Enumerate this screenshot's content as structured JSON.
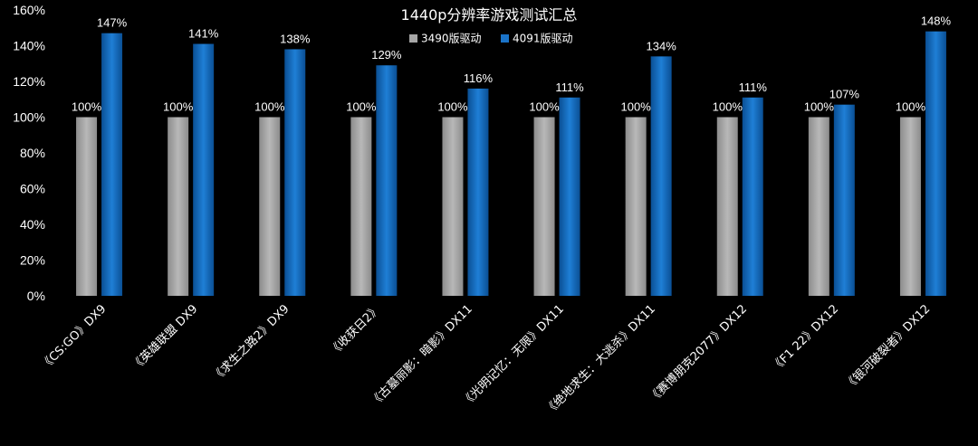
{
  "chart_data": {
    "type": "bar",
    "title": "1440p分辨率游戏测试汇总",
    "categories": [
      "《CS:GO》DX9",
      "《英雄联盟 DX9",
      "《求生之路2》DX9",
      "《收获日2》",
      "《古墓丽影：暗影》DX11",
      "《光明记忆：无限》DX11",
      "《绝地求生：大逃杀》DX11",
      "《赛博朋克2077》DX12",
      "《F1 22》DX12",
      "《银河破裂者》DX12"
    ],
    "series": [
      {
        "name": "3490版驱动",
        "color": "#a6a6a6",
        "values": [
          100,
          100,
          100,
          100,
          100,
          100,
          100,
          100,
          100,
          100
        ],
        "labels": [
          "100%",
          "100%",
          "100%",
          "100%",
          "100%",
          "100%",
          "100%",
          "100%",
          "100%",
          "100%"
        ]
      },
      {
        "name": "4091版驱动",
        "color": "#1a73c8",
        "values": [
          147,
          141,
          138,
          129,
          116,
          111,
          134,
          111,
          107,
          148
        ],
        "labels": [
          "147%",
          "141%",
          "138%",
          "129%",
          "116%",
          "111%",
          "134%",
          "111%",
          "107%",
          "148%"
        ]
      }
    ],
    "yticks": [
      "0%",
      "20%",
      "40%",
      "60%",
      "80%",
      "100%",
      "120%",
      "140%",
      "160%"
    ],
    "ylim": [
      0,
      160
    ],
    "grid": false,
    "legend": "top-center",
    "background": "#000000",
    "text_color": "#ffffff"
  }
}
